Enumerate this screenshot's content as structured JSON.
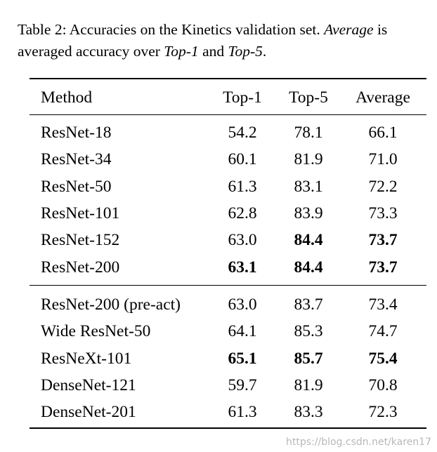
{
  "caption": {
    "prefix": "Table 2:  Accuracies on the Kinetics validation set. ",
    "average_term": "Average",
    "mid": " is",
    "line2_start": "averaged accuracy over ",
    "top1_term": "Top-1",
    "and": " and ",
    "top5_term": "Top-5",
    "end": "."
  },
  "table": {
    "headers": [
      "Method",
      "Top-1",
      "Top-5",
      "Average"
    ],
    "group1": [
      {
        "method": "ResNet-18",
        "top1": "54.2",
        "top5": "78.1",
        "avg": "66.1",
        "bold": [
          false,
          false,
          false
        ]
      },
      {
        "method": "ResNet-34",
        "top1": "60.1",
        "top5": "81.9",
        "avg": "71.0",
        "bold": [
          false,
          false,
          false
        ]
      },
      {
        "method": "ResNet-50",
        "top1": "61.3",
        "top5": "83.1",
        "avg": "72.2",
        "bold": [
          false,
          false,
          false
        ]
      },
      {
        "method": "ResNet-101",
        "top1": "62.8",
        "top5": "83.9",
        "avg": "73.3",
        "bold": [
          false,
          false,
          false
        ]
      },
      {
        "method": "ResNet-152",
        "top1": "63.0",
        "top5": "84.4",
        "avg": "73.7",
        "bold": [
          false,
          true,
          true
        ]
      },
      {
        "method": "ResNet-200",
        "top1": "63.1",
        "top5": "84.4",
        "avg": "73.7",
        "bold": [
          true,
          true,
          true
        ]
      }
    ],
    "group2": [
      {
        "method": "ResNet-200 (pre-act)",
        "top1": "63.0",
        "top5": "83.7",
        "avg": "73.4",
        "bold": [
          false,
          false,
          false
        ]
      },
      {
        "method": "Wide ResNet-50",
        "top1": "64.1",
        "top5": "85.3",
        "avg": "74.7",
        "bold": [
          false,
          false,
          false
        ]
      },
      {
        "method": "ResNeXt-101",
        "top1": "65.1",
        "top5": "85.7",
        "avg": "75.4",
        "bold": [
          true,
          true,
          true
        ]
      },
      {
        "method": "DenseNet-121",
        "top1": "59.7",
        "top5": "81.9",
        "avg": "70.8",
        "bold": [
          false,
          false,
          false
        ]
      },
      {
        "method": "DenseNet-201",
        "top1": "61.3",
        "top5": "83.3",
        "avg": "72.3",
        "bold": [
          false,
          false,
          false
        ]
      }
    ]
  },
  "watermark": "https://blog.csdn.net/karen17"
}
